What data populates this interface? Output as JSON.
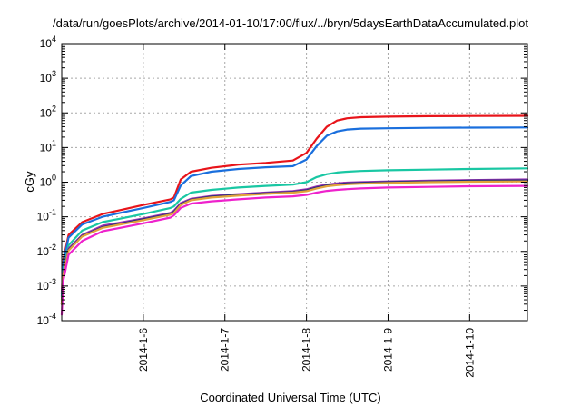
{
  "chart_data": {
    "type": "line",
    "title": "/data/run/goesPlots/archive/2014-01-10/17:00/flux/../bryn/5daysEarthDataAccumulated.plot",
    "xlabel": "Coordinated Universal Time (UTC)",
    "ylabel": "cGy",
    "x_ticks": [
      "2014-1-6",
      "2014-1-7",
      "2014-1-8",
      "2014-1-9",
      "2014-1-10"
    ],
    "y_ticks": [
      {
        "base": "10",
        "exp": "-4"
      },
      {
        "base": "10",
        "exp": "-3"
      },
      {
        "base": "10",
        "exp": "-2"
      },
      {
        "base": "10",
        "exp": "-1"
      },
      {
        "base": "10",
        "exp": "0"
      },
      {
        "base": "10",
        "exp": "1"
      },
      {
        "base": "10",
        "exp": "2"
      },
      {
        "base": "10",
        "exp": "3"
      },
      {
        "base": "10",
        "exp": "4"
      }
    ],
    "y_scale": "log",
    "ylim": [
      0.0001,
      10000
    ],
    "xlim": [
      "2014-01-05T00:00",
      "2014-01-10T17:00"
    ],
    "grid": true,
    "legend": "none",
    "series": [
      {
        "color": "#e8141a",
        "x": [
          "2014-01-05T00:00",
          "2014-01-05T00:30",
          "2014-01-05T02:00",
          "2014-01-05T06:00",
          "2014-01-05T12:00",
          "2014-01-06T00:00",
          "2014-01-06T08:00",
          "2014-01-06T09:00",
          "2014-01-06T11:00",
          "2014-01-06T14:00",
          "2014-01-06T20:00",
          "2014-01-07T04:00",
          "2014-01-07T12:00",
          "2014-01-07T20:00",
          "2014-01-08T00:00",
          "2014-01-08T03:00",
          "2014-01-08T06:00",
          "2014-01-08T09:00",
          "2014-01-08T12:00",
          "2014-01-08T16:00",
          "2014-01-09T00:00",
          "2014-01-09T12:00",
          "2014-01-10T00:00",
          "2014-01-10T17:00"
        ],
        "y": [
          0.0006,
          0.006,
          0.03,
          0.07,
          0.12,
          0.22,
          0.32,
          0.36,
          1.2,
          2.0,
          2.6,
          3.2,
          3.6,
          4.2,
          7,
          18,
          40,
          60,
          70,
          75,
          78,
          80,
          81,
          82
        ]
      },
      {
        "color": "#1a6fdd",
        "x": [
          "2014-01-05T00:00",
          "2014-01-05T00:30",
          "2014-01-05T02:00",
          "2014-01-05T06:00",
          "2014-01-05T12:00",
          "2014-01-06T00:00",
          "2014-01-06T08:00",
          "2014-01-06T09:00",
          "2014-01-06T11:00",
          "2014-01-06T14:00",
          "2014-01-06T20:00",
          "2014-01-07T04:00",
          "2014-01-07T12:00",
          "2014-01-07T20:00",
          "2014-01-08T00:00",
          "2014-01-08T03:00",
          "2014-01-08T06:00",
          "2014-01-08T09:00",
          "2014-01-08T12:00",
          "2014-01-08T16:00",
          "2014-01-09T00:00",
          "2014-01-09T12:00",
          "2014-01-10T00:00",
          "2014-01-10T17:00"
        ],
        "y": [
          0.0005,
          0.005,
          0.025,
          0.06,
          0.1,
          0.18,
          0.27,
          0.3,
          0.8,
          1.5,
          2.0,
          2.4,
          2.7,
          2.9,
          4.5,
          11,
          22,
          29,
          33,
          35,
          36,
          37,
          37.5,
          38
        ]
      },
      {
        "color": "#19c7a3",
        "x": [
          "2014-01-05T00:00",
          "2014-01-05T00:30",
          "2014-01-05T02:00",
          "2014-01-05T06:00",
          "2014-01-05T12:00",
          "2014-01-06T00:00",
          "2014-01-06T08:00",
          "2014-01-06T09:00",
          "2014-01-06T11:00",
          "2014-01-06T14:00",
          "2014-01-06T20:00",
          "2014-01-07T04:00",
          "2014-01-07T12:00",
          "2014-01-07T20:00",
          "2014-01-08T00:00",
          "2014-01-08T03:00",
          "2014-01-08T06:00",
          "2014-01-08T09:00",
          "2014-01-08T12:00",
          "2014-01-08T16:00",
          "2014-01-09T00:00",
          "2014-01-09T12:00",
          "2014-01-10T00:00",
          "2014-01-10T17:00"
        ],
        "y": [
          0.0004,
          0.003,
          0.015,
          0.04,
          0.07,
          0.12,
          0.18,
          0.2,
          0.33,
          0.5,
          0.6,
          0.7,
          0.78,
          0.85,
          1.0,
          1.4,
          1.7,
          1.9,
          2.0,
          2.1,
          2.2,
          2.3,
          2.4,
          2.5
        ]
      },
      {
        "color": "#9b2fb0",
        "x": [
          "2014-01-05T00:00",
          "2014-01-05T00:30",
          "2014-01-05T02:00",
          "2014-01-05T06:00",
          "2014-01-05T12:00",
          "2014-01-06T00:00",
          "2014-01-06T08:00",
          "2014-01-06T09:00",
          "2014-01-06T11:00",
          "2014-01-06T14:00",
          "2014-01-06T20:00",
          "2014-01-07T04:00",
          "2014-01-07T12:00",
          "2014-01-07T20:00",
          "2014-01-08T00:00",
          "2014-01-08T03:00",
          "2014-01-08T06:00",
          "2014-01-08T09:00",
          "2014-01-08T12:00",
          "2014-01-08T16:00",
          "2014-01-09T00:00",
          "2014-01-09T12:00",
          "2014-01-10T00:00",
          "2014-01-10T17:00"
        ],
        "y": [
          0.0003,
          0.0025,
          0.012,
          0.03,
          0.055,
          0.09,
          0.13,
          0.15,
          0.25,
          0.33,
          0.4,
          0.45,
          0.5,
          0.55,
          0.62,
          0.75,
          0.85,
          0.92,
          0.97,
          1.0,
          1.05,
          1.1,
          1.15,
          1.2
        ]
      },
      {
        "color": "#1f2f7a",
        "x": [
          "2014-01-05T00:00",
          "2014-01-05T00:30",
          "2014-01-05T02:00",
          "2014-01-05T06:00",
          "2014-01-05T12:00",
          "2014-01-06T00:00",
          "2014-01-06T08:00",
          "2014-01-06T09:00",
          "2014-01-06T11:00",
          "2014-01-06T14:00",
          "2014-01-06T20:00",
          "2014-01-07T04:00",
          "2014-01-07T12:00",
          "2014-01-07T20:00",
          "2014-01-08T00:00",
          "2014-01-08T03:00",
          "2014-01-08T06:00",
          "2014-01-08T09:00",
          "2014-01-08T12:00",
          "2014-01-08T16:00",
          "2014-01-09T00:00",
          "2014-01-09T12:00",
          "2014-01-10T00:00",
          "2014-01-10T17:00"
        ],
        "y": [
          0.0003,
          0.0023,
          0.011,
          0.028,
          0.05,
          0.085,
          0.12,
          0.14,
          0.23,
          0.31,
          0.38,
          0.43,
          0.48,
          0.52,
          0.58,
          0.7,
          0.8,
          0.87,
          0.92,
          0.95,
          1.0,
          1.05,
          1.1,
          1.12
        ]
      },
      {
        "color": "#e2a23a",
        "x": [
          "2014-01-05T00:00",
          "2014-01-05T00:30",
          "2014-01-05T02:00",
          "2014-01-05T06:00",
          "2014-01-05T12:00",
          "2014-01-06T00:00",
          "2014-01-06T08:00",
          "2014-01-06T09:00",
          "2014-01-06T11:00",
          "2014-01-06T14:00",
          "2014-01-06T20:00",
          "2014-01-07T04:00",
          "2014-01-07T12:00",
          "2014-01-07T20:00",
          "2014-01-08T00:00",
          "2014-01-08T03:00",
          "2014-01-08T06:00",
          "2014-01-08T09:00",
          "2014-01-08T12:00",
          "2014-01-08T16:00",
          "2014-01-09T00:00",
          "2014-01-09T12:00",
          "2014-01-10T00:00",
          "2014-01-10T17:00"
        ],
        "y": [
          0.0003,
          0.0022,
          0.0105,
          0.027,
          0.048,
          0.08,
          0.115,
          0.13,
          0.22,
          0.3,
          0.36,
          0.41,
          0.46,
          0.5,
          0.55,
          0.66,
          0.76,
          0.82,
          0.87,
          0.9,
          0.95,
          1.0,
          1.03,
          1.05
        ]
      },
      {
        "color": "#ee22cc",
        "x": [
          "2014-01-05T00:00",
          "2014-01-05T00:30",
          "2014-01-05T02:00",
          "2014-01-05T06:00",
          "2014-01-05T12:00",
          "2014-01-06T00:00",
          "2014-01-06T08:00",
          "2014-01-06T09:00",
          "2014-01-06T11:00",
          "2014-01-06T14:00",
          "2014-01-06T20:00",
          "2014-01-07T04:00",
          "2014-01-07T12:00",
          "2014-01-07T20:00",
          "2014-01-08T00:00",
          "2014-01-08T03:00",
          "2014-01-08T06:00",
          "2014-01-08T09:00",
          "2014-01-08T12:00",
          "2014-01-08T16:00",
          "2014-01-09T00:00",
          "2014-01-09T12:00",
          "2014-01-10T00:00",
          "2014-01-10T17:00"
        ],
        "y": [
          0.00015,
          0.0015,
          0.008,
          0.02,
          0.038,
          0.065,
          0.095,
          0.11,
          0.18,
          0.24,
          0.28,
          0.32,
          0.36,
          0.39,
          0.43,
          0.5,
          0.56,
          0.6,
          0.63,
          0.66,
          0.7,
          0.73,
          0.76,
          0.78
        ]
      }
    ]
  }
}
